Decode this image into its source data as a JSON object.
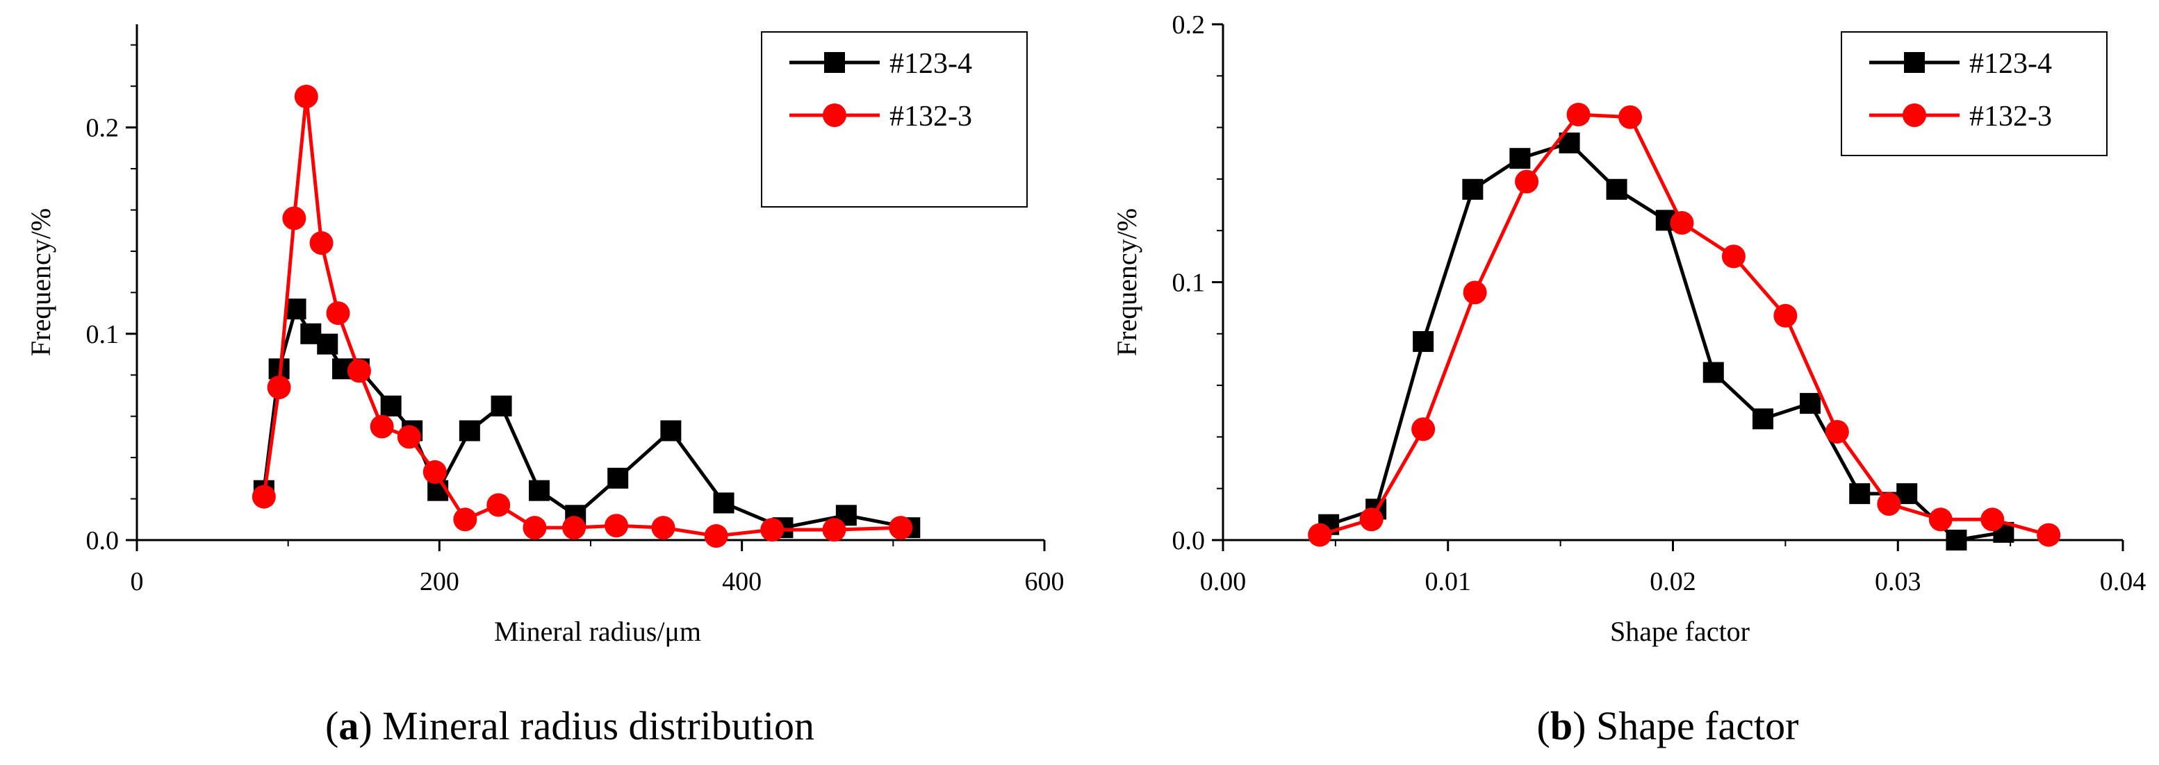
{
  "chart_data": [
    {
      "type": "line",
      "title": "",
      "xlabel": "Mineral radius/μm",
      "ylabel": "Frequency/%",
      "xlim": [
        0,
        600
      ],
      "ylim": [
        0,
        0.25
      ],
      "xticks": [
        0,
        200,
        400,
        600
      ],
      "xtick_labels": [
        "0",
        "200",
        "400",
        "600"
      ],
      "yticks": [
        0.0,
        0.1,
        0.2
      ],
      "ytick_labels": [
        "0.0",
        "0.1",
        "0.2"
      ],
      "caption_letter": "a",
      "caption_open": "(",
      "caption_close": ")",
      "caption_text": " Mineral radius distribution",
      "legend_position": "top-right",
      "series": [
        {
          "name": "#123-4",
          "color": "#000000",
          "marker": "square",
          "x": [
            84,
            94,
            105,
            115,
            126,
            136,
            147,
            168,
            182,
            199,
            220,
            241,
            266,
            290,
            318,
            353,
            388,
            427,
            469,
            511
          ],
          "y": [
            0.024,
            0.083,
            0.112,
            0.1,
            0.095,
            0.083,
            0.083,
            0.065,
            0.053,
            0.024,
            0.053,
            0.065,
            0.024,
            0.012,
            0.03,
            0.053,
            0.018,
            0.006,
            0.012,
            0.006
          ]
        },
        {
          "name": "#132-3",
          "color": "#ff0000",
          "marker": "circle",
          "x": [
            84,
            94,
            104,
            112,
            122,
            133,
            147,
            162,
            180,
            197,
            217,
            239,
            263,
            289,
            317,
            348,
            383,
            420,
            461,
            505
          ],
          "y": [
            0.021,
            0.074,
            0.156,
            0.215,
            0.144,
            0.11,
            0.082,
            0.055,
            0.05,
            0.033,
            0.01,
            0.017,
            0.006,
            0.006,
            0.007,
            0.006,
            0.002,
            0.005,
            0.005,
            0.006
          ]
        }
      ]
    },
    {
      "type": "line",
      "title": "",
      "xlabel": "Shape factor",
      "ylabel": "Frequency/%",
      "xlim": [
        0.0,
        0.04
      ],
      "ylim": [
        0,
        0.2
      ],
      "xticks": [
        0.0,
        0.01,
        0.02,
        0.03,
        0.04
      ],
      "xtick_labels": [
        "0.00",
        "0.01",
        "0.02",
        "0.03",
        "0.04"
      ],
      "yticks": [
        0.0,
        0.1,
        0.2
      ],
      "ytick_labels": [
        "0.0",
        "0.1",
        "0.2"
      ],
      "caption_letter": "b",
      "caption_open": "(",
      "caption_close": ")",
      "caption_text": " Shape factor",
      "legend_position": "top-right",
      "series": [
        {
          "name": "#123-4",
          "color": "#000000",
          "marker": "square",
          "x": [
            0.0047,
            0.0068,
            0.0089,
            0.0111,
            0.0132,
            0.0154,
            0.0175,
            0.0197,
            0.0218,
            0.024,
            0.0261,
            0.0283,
            0.0304,
            0.0326,
            0.0347
          ],
          "y": [
            0.006,
            0.012,
            0.077,
            0.136,
            0.148,
            0.154,
            0.136,
            0.124,
            0.065,
            0.047,
            0.053,
            0.018,
            0.018,
            0.0,
            0.003
          ]
        },
        {
          "name": "#132-3",
          "color": "#ff0000",
          "marker": "circle",
          "x": [
            0.0043,
            0.0066,
            0.0089,
            0.0112,
            0.0135,
            0.0158,
            0.0181,
            0.0204,
            0.0227,
            0.025,
            0.0273,
            0.0296,
            0.0319,
            0.0342,
            0.0367
          ],
          "y": [
            0.002,
            0.008,
            0.043,
            0.096,
            0.139,
            0.165,
            0.164,
            0.123,
            0.11,
            0.087,
            0.042,
            0.014,
            0.008,
            0.008,
            0.002
          ]
        }
      ]
    }
  ]
}
